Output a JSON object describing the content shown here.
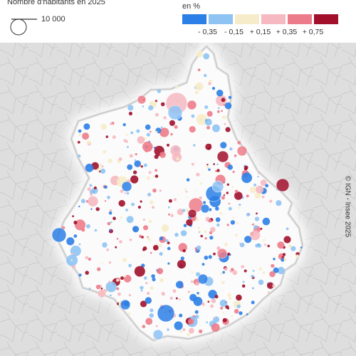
{
  "legend": {
    "size_title": "Nombre d'habitants en 2025",
    "size_label": "10 000",
    "color_title": "en %",
    "colors": [
      "#2b7fe6",
      "#8ec3f4",
      "#f6ecc9",
      "#f6b9c1",
      "#ec7c89",
      "#a10f2b"
    ],
    "breaks": [
      "- 0,35",
      "- 0,15",
      "+ 0,15",
      "+ 0,35",
      "+ 0,75"
    ]
  },
  "credit": "© IGN - Insee 2025"
}
